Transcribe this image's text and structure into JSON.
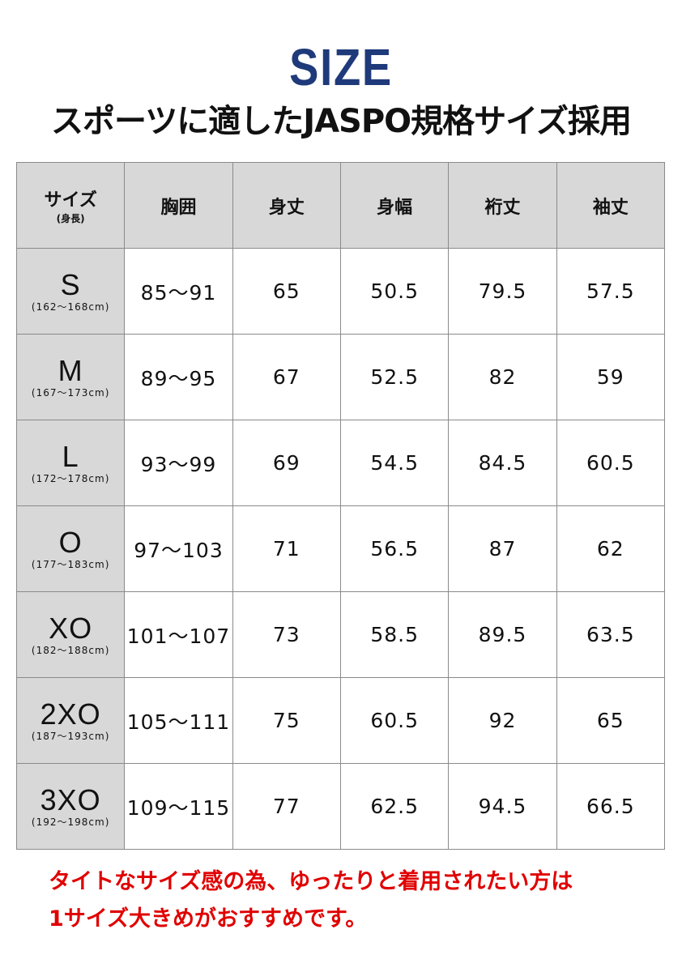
{
  "title": "SIZE",
  "subtitle": "スポーツに適したJASPO規格サイズ採用",
  "table": {
    "header": {
      "size_label": "サイズ",
      "size_sub": "(身長)",
      "columns": [
        "胸囲",
        "身丈",
        "身幅",
        "裄丈",
        "袖丈"
      ]
    },
    "rows": [
      {
        "size": "S",
        "height": "(162〜168cm)",
        "values": [
          "85〜91",
          "65",
          "50.5",
          "79.5",
          "57.5"
        ]
      },
      {
        "size": "M",
        "height": "(167〜173cm)",
        "values": [
          "89〜95",
          "67",
          "52.5",
          "82",
          "59"
        ]
      },
      {
        "size": "L",
        "height": "(172〜178cm)",
        "values": [
          "93〜99",
          "69",
          "54.5",
          "84.5",
          "60.5"
        ]
      },
      {
        "size": "O",
        "height": "(177〜183cm)",
        "values": [
          "97〜103",
          "71",
          "56.5",
          "87",
          "62"
        ]
      },
      {
        "size": "XO",
        "height": "(182〜188cm)",
        "values": [
          "101〜107",
          "73",
          "58.5",
          "89.5",
          "63.5"
        ]
      },
      {
        "size": "2XO",
        "height": "(187〜193cm)",
        "values": [
          "105〜111",
          "75",
          "60.5",
          "92",
          "65"
        ]
      },
      {
        "size": "3XO",
        "height": "(192〜198cm)",
        "values": [
          "109〜115",
          "77",
          "62.5",
          "94.5",
          "66.5"
        ]
      }
    ]
  },
  "note": {
    "line1": "タイトなサイズ感の為、ゆったりと着用されたい方は",
    "line2": "1サイズ大きめがおすすめです。"
  },
  "colors": {
    "title": "#1f3a7a",
    "note": "#e00000",
    "header_bg": "#d8d8d8"
  }
}
